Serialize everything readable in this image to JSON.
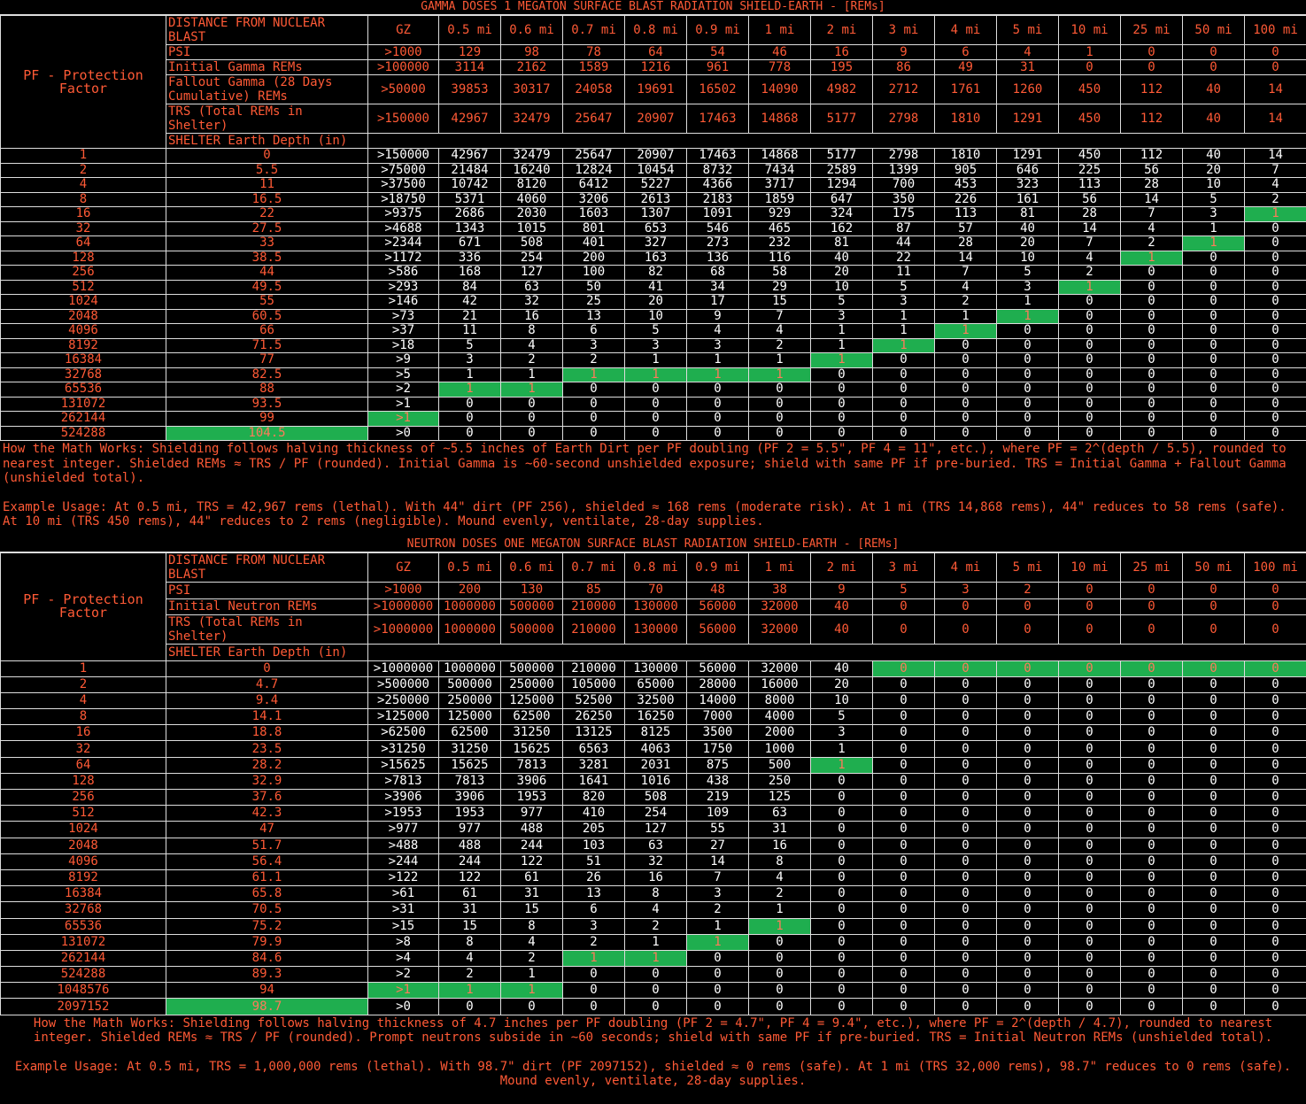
{
  "gamma": {
    "title": "GAMMA DOSES 1 MEGATON SURFACE BLAST RADIATION SHIELD-EARTH - [REMs]",
    "pf_label": "PF - Protection Factor",
    "distance_label": "DISTANCE FROM NUCLEAR BLAST",
    "distances": [
      "GZ",
      "0.5 mi",
      "0.6 mi",
      "0.7 mi",
      "0.8 mi",
      "0.9 mi",
      "1 mi",
      "2 mi",
      "3 mi",
      "4 mi",
      "5 mi",
      "10 mi",
      "25 mi",
      "50 mi",
      "100 mi"
    ],
    "header_rows": [
      {
        "label": "PSI",
        "values": [
          ">1000",
          129,
          98,
          78,
          64,
          54,
          46,
          16,
          9,
          6,
          4,
          1,
          0,
          0,
          0
        ]
      },
      {
        "label": "Initial Gamma REMs",
        "values": [
          ">100000",
          3114,
          2162,
          1589,
          1216,
          961,
          778,
          195,
          86,
          49,
          31,
          0,
          0,
          0,
          0
        ]
      },
      {
        "label": "Fallout Gamma (28 Days Cumulative) REMs",
        "values": [
          ">50000",
          39853,
          30317,
          24058,
          19691,
          16502,
          14090,
          4982,
          2712,
          1761,
          1260,
          450,
          112,
          40,
          14
        ]
      },
      {
        "label": "TRS (Total REMs in Shelter)",
        "values": [
          ">150000",
          42967,
          32479,
          25647,
          20907,
          17463,
          14868,
          5177,
          2798,
          1810,
          1291,
          450,
          112,
          40,
          14
        ]
      }
    ],
    "depth_label": "SHELTER Earth Depth (in)",
    "rows": [
      [
        1,
        0,
        ">150000",
        42967,
        32479,
        25647,
        20907,
        17463,
        14868,
        5177,
        2798,
        1810,
        1291,
        450,
        112,
        40,
        14
      ],
      [
        2,
        5.5,
        ">75000",
        21484,
        16240,
        12824,
        10454,
        8732,
        7434,
        2589,
        1399,
        905,
        646,
        225,
        56,
        20,
        7
      ],
      [
        4,
        11,
        ">37500",
        10742,
        8120,
        6412,
        5227,
        4366,
        3717,
        1294,
        700,
        453,
        323,
        113,
        28,
        10,
        4
      ],
      [
        8,
        16.5,
        ">18750",
        5371,
        4060,
        3206,
        2613,
        2183,
        1859,
        647,
        350,
        226,
        161,
        56,
        14,
        5,
        2
      ],
      [
        16,
        22,
        ">9375",
        2686,
        2030,
        1603,
        1307,
        1091,
        929,
        324,
        175,
        113,
        81,
        28,
        7,
        3,
        1
      ],
      [
        32,
        27.5,
        ">4688",
        1343,
        1015,
        801,
        653,
        546,
        465,
        162,
        87,
        57,
        40,
        14,
        4,
        1,
        0
      ],
      [
        64,
        33,
        ">2344",
        671,
        508,
        401,
        327,
        273,
        232,
        81,
        44,
        28,
        20,
        7,
        2,
        1,
        0
      ],
      [
        128,
        38.5,
        ">1172",
        336,
        254,
        200,
        163,
        136,
        116,
        40,
        22,
        14,
        10,
        4,
        1,
        0,
        0
      ],
      [
        256,
        44,
        ">586",
        168,
        127,
        100,
        82,
        68,
        58,
        20,
        11,
        7,
        5,
        2,
        0,
        0,
        0
      ],
      [
        512,
        49.5,
        ">293",
        84,
        63,
        50,
        41,
        34,
        29,
        10,
        5,
        4,
        3,
        1,
        0,
        0,
        0
      ],
      [
        1024,
        55,
        ">146",
        42,
        32,
        25,
        20,
        17,
        15,
        5,
        3,
        2,
        1,
        0,
        0,
        0,
        0
      ],
      [
        2048,
        60.5,
        ">73",
        21,
        16,
        13,
        10,
        9,
        7,
        3,
        1,
        1,
        1,
        0,
        0,
        0,
        0
      ],
      [
        4096,
        66,
        ">37",
        11,
        8,
        6,
        5,
        4,
        4,
        1,
        1,
        1,
        0,
        0,
        0,
        0,
        0
      ],
      [
        8192,
        71.5,
        ">18",
        5,
        4,
        3,
        3,
        3,
        2,
        1,
        1,
        0,
        0,
        0,
        0,
        0,
        0
      ],
      [
        16384,
        77,
        ">9",
        3,
        2,
        2,
        1,
        1,
        1,
        1,
        0,
        0,
        0,
        0,
        0,
        0,
        0
      ],
      [
        32768,
        82.5,
        ">5",
        1,
        1,
        1,
        1,
        1,
        1,
        0,
        0,
        0,
        0,
        0,
        0,
        0,
        0
      ],
      [
        65536,
        88,
        ">2",
        1,
        1,
        0,
        0,
        0,
        0,
        0,
        0,
        0,
        0,
        0,
        0,
        0,
        0
      ],
      [
        131072,
        93.5,
        ">1",
        0,
        0,
        0,
        0,
        0,
        0,
        0,
        0,
        0,
        0,
        0,
        0,
        0,
        0
      ],
      [
        262144,
        99,
        ">1",
        0,
        0,
        0,
        0,
        0,
        0,
        0,
        0,
        0,
        0,
        0,
        0,
        0,
        0
      ],
      [
        524288,
        104.5,
        ">0",
        0,
        0,
        0,
        0,
        0,
        0,
        0,
        0,
        0,
        0,
        0,
        0,
        0,
        0
      ]
    ],
    "green_cells": [
      [
        4,
        16
      ],
      [
        6,
        15
      ],
      [
        7,
        14
      ],
      [
        9,
        13
      ],
      [
        11,
        12
      ],
      [
        12,
        11
      ],
      [
        13,
        10
      ],
      [
        14,
        9
      ],
      [
        15,
        5
      ],
      [
        15,
        6
      ],
      [
        15,
        7
      ],
      [
        15,
        8
      ],
      [
        16,
        3
      ],
      [
        16,
        4
      ],
      [
        18,
        2
      ],
      [
        19,
        1
      ]
    ],
    "notes": [
      "How the Math Works: Shielding follows halving thickness of ~5.5 inches of Earth Dirt per PF doubling (PF 2 = 5.5\", PF 4 = 11\", etc.), where PF = 2^(depth / 5.5), rounded to nearest integer. Shielded REMs ≈ TRS / PF (rounded). Initial Gamma is ~60-second unshielded exposure; shield with same PF if pre-buried. TRS = Initial Gamma + Fallout Gamma (unshielded total).",
      "Example Usage: At 0.5 mi, TRS = 42,967 rems (lethal). With 44\" dirt (PF 256), shielded ≈ 168 rems (moderate risk). At 1 mi (TRS 14,868 rems), 44\" reduces to 58 rems (safe). At 10 mi (TRS 450 rems), 44\" reduces to 2 rems (negligible). Mound evenly, ventilate, 28-day supplies."
    ]
  },
  "neutron": {
    "title": "NEUTRON DOSES ONE MEGATON SURFACE BLAST RADIATION SHIELD-EARTH - [REMs]",
    "pf_label": "PF - Protection Factor",
    "distance_label": "DISTANCE FROM NUCLEAR BLAST",
    "distances": [
      "GZ",
      "0.5 mi",
      "0.6 mi",
      "0.7 mi",
      "0.8 mi",
      "0.9 mi",
      "1 mi",
      "2 mi",
      "3 mi",
      "4 mi",
      "5 mi",
      "10 mi",
      "25 mi",
      "50 mi",
      "100 mi"
    ],
    "header_rows": [
      {
        "label": "PSI",
        "values": [
          ">1000",
          200,
          130,
          85,
          70,
          48,
          38,
          9,
          5,
          3,
          2,
          0,
          0,
          0,
          0
        ]
      },
      {
        "label": "Initial Neutron REMs",
        "values": [
          ">1000000",
          1000000,
          500000,
          210000,
          130000,
          56000,
          32000,
          40,
          0,
          0,
          0,
          0,
          0,
          0,
          0
        ]
      },
      {
        "label": "TRS (Total REMs in Shelter)",
        "values": [
          ">1000000",
          1000000,
          500000,
          210000,
          130000,
          56000,
          32000,
          40,
          0,
          0,
          0,
          0,
          0,
          0,
          0
        ]
      }
    ],
    "depth_label": "SHELTER Earth Depth (in)",
    "rows": [
      [
        1,
        0,
        ">1000000",
        1000000,
        500000,
        210000,
        130000,
        56000,
        32000,
        40,
        0,
        0,
        0,
        0,
        0,
        0,
        0
      ],
      [
        2,
        4.7,
        ">500000",
        500000,
        250000,
        105000,
        65000,
        28000,
        16000,
        20,
        0,
        0,
        0,
        0,
        0,
        0,
        0
      ],
      [
        4,
        9.4,
        ">250000",
        250000,
        125000,
        52500,
        32500,
        14000,
        8000,
        10,
        0,
        0,
        0,
        0,
        0,
        0,
        0
      ],
      [
        8,
        14.1,
        ">125000",
        125000,
        62500,
        26250,
        16250,
        7000,
        4000,
        5,
        0,
        0,
        0,
        0,
        0,
        0,
        0
      ],
      [
        16,
        18.8,
        ">62500",
        62500,
        31250,
        13125,
        8125,
        3500,
        2000,
        3,
        0,
        0,
        0,
        0,
        0,
        0,
        0
      ],
      [
        32,
        23.5,
        ">31250",
        31250,
        15625,
        6563,
        4063,
        1750,
        1000,
        1,
        0,
        0,
        0,
        0,
        0,
        0,
        0
      ],
      [
        64,
        28.2,
        ">15625",
        15625,
        7813,
        3281,
        2031,
        875,
        500,
        1,
        0,
        0,
        0,
        0,
        0,
        0,
        0
      ],
      [
        128,
        32.9,
        ">7813",
        7813,
        3906,
        1641,
        1016,
        438,
        250,
        0,
        0,
        0,
        0,
        0,
        0,
        0,
        0
      ],
      [
        256,
        37.6,
        ">3906",
        3906,
        1953,
        820,
        508,
        219,
        125,
        0,
        0,
        0,
        0,
        0,
        0,
        0,
        0
      ],
      [
        512,
        42.3,
        ">1953",
        1953,
        977,
        410,
        254,
        109,
        63,
        0,
        0,
        0,
        0,
        0,
        0,
        0,
        0
      ],
      [
        1024,
        47,
        ">977",
        977,
        488,
        205,
        127,
        55,
        31,
        0,
        0,
        0,
        0,
        0,
        0,
        0,
        0
      ],
      [
        2048,
        51.7,
        ">488",
        488,
        244,
        103,
        63,
        27,
        16,
        0,
        0,
        0,
        0,
        0,
        0,
        0,
        0
      ],
      [
        4096,
        56.4,
        ">244",
        244,
        122,
        51,
        32,
        14,
        8,
        0,
        0,
        0,
        0,
        0,
        0,
        0,
        0
      ],
      [
        8192,
        61.1,
        ">122",
        122,
        61,
        26,
        16,
        7,
        4,
        0,
        0,
        0,
        0,
        0,
        0,
        0,
        0
      ],
      [
        16384,
        65.8,
        ">61",
        61,
        31,
        13,
        8,
        3,
        2,
        0,
        0,
        0,
        0,
        0,
        0,
        0,
        0
      ],
      [
        32768,
        70.5,
        ">31",
        31,
        15,
        6,
        4,
        2,
        1,
        0,
        0,
        0,
        0,
        0,
        0,
        0,
        0
      ],
      [
        65536,
        75.2,
        ">15",
        15,
        8,
        3,
        2,
        1,
        1,
        0,
        0,
        0,
        0,
        0,
        0,
        0,
        0
      ],
      [
        131072,
        79.9,
        ">8",
        8,
        4,
        2,
        1,
        1,
        0,
        0,
        0,
        0,
        0,
        0,
        0,
        0,
        0
      ],
      [
        262144,
        84.6,
        ">4",
        4,
        2,
        1,
        1,
        0,
        0,
        0,
        0,
        0,
        0,
        0,
        0,
        0,
        0
      ],
      [
        524288,
        89.3,
        ">2",
        2,
        1,
        0,
        0,
        0,
        0,
        0,
        0,
        0,
        0,
        0,
        0,
        0,
        0
      ],
      [
        1048576,
        94,
        ">1",
        1,
        1,
        0,
        0,
        0,
        0,
        0,
        0,
        0,
        0,
        0,
        0,
        0,
        0
      ],
      [
        2097152,
        98.7,
        ">0",
        0,
        0,
        0,
        0,
        0,
        0,
        0,
        0,
        0,
        0,
        0,
        0,
        0,
        0
      ]
    ],
    "green_cells": [
      [
        0,
        10
      ],
      [
        0,
        11
      ],
      [
        0,
        12
      ],
      [
        0,
        13
      ],
      [
        0,
        14
      ],
      [
        0,
        15
      ],
      [
        0,
        16
      ],
      [
        6,
        9
      ],
      [
        16,
        8
      ],
      [
        17,
        7
      ],
      [
        18,
        5
      ],
      [
        18,
        6
      ],
      [
        20,
        2
      ],
      [
        20,
        3
      ],
      [
        20,
        4
      ],
      [
        21,
        1
      ]
    ],
    "notes": [
      "How the Math Works: Shielding follows halving thickness of 4.7 inches per PF doubling (PF 2 = 4.7\", PF 4 = 9.4\", etc.), where PF = 2^(depth / 4.7), rounded to nearest integer. Shielded REMs ≈ TRS / PF (rounded). Prompt neutrons subside in ~60 seconds; shield with same PF if pre-buried. TRS = Initial Neutron REMs (unshielded total).",
      "Example Usage: At 0.5 mi, TRS = 1,000,000 rems (lethal). With 98.7\" dirt (PF 2097152), shielded ≈ 0 rems (safe). At 1 mi (TRS 32,000 rems), 98.7\" reduces to 0 rems (safe). Mound evenly, ventilate, 28-day supplies."
    ]
  }
}
